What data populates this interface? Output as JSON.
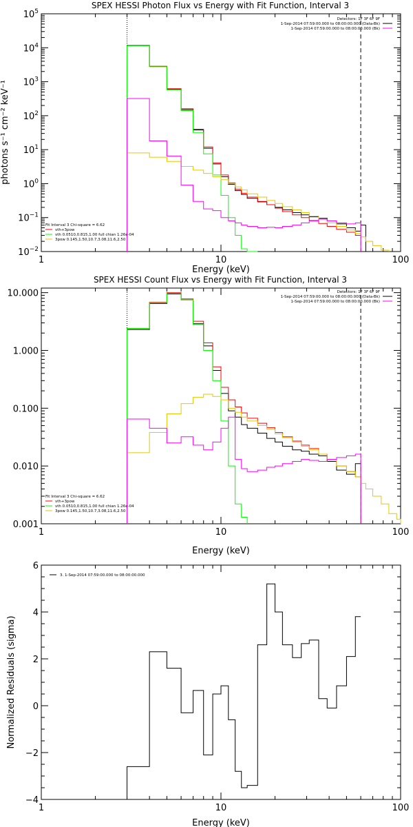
{
  "chart_data": [
    {
      "id": "photon",
      "type": "line",
      "title": "SPEX HESSI Photon Flux vs Energy with Fit Function, Interval 3",
      "xlabel": "Energy (keV)",
      "ylabel": "photons s⁻¹ cm⁻² keV⁻¹",
      "xscale": "log",
      "yscale": "log",
      "xlim": [
        1,
        100
      ],
      "ylim": [
        0.01,
        100000
      ],
      "x_ticks": [
        {
          "v": 1,
          "label": "1"
        },
        {
          "v": 10,
          "label": "10"
        },
        {
          "v": 100,
          "label": "100"
        }
      ],
      "y_ticks": [
        {
          "v": 0.01,
          "base": "10",
          "exp": "−2"
        },
        {
          "v": 0.1,
          "base": "10",
          "exp": "−1"
        },
        {
          "v": 1,
          "base": "10",
          "exp": "0"
        },
        {
          "v": 10,
          "base": "10",
          "exp": "1"
        },
        {
          "v": 100,
          "base": "10",
          "exp": "2"
        },
        {
          "v": 1000,
          "base": "10",
          "exp": "3"
        },
        {
          "v": 10000,
          "base": "10",
          "exp": "4"
        },
        {
          "v": 100000,
          "base": "10",
          "exp": "5"
        }
      ],
      "vlines": [
        {
          "x": 3,
          "style": "dotted"
        },
        {
          "x": 60,
          "style": "dashed"
        }
      ],
      "legend_top": {
        "detectors": "Detectors: 1F 3F 6F 9F",
        "entries": [
          {
            "label": "1-Sep-2014 07:59:00.000 to 08:00:00.000 (Data-Bk)",
            "color": "#000000"
          },
          {
            "label": "1-Sep-2014 07:59:00.000 to 08:00:00.000 (Bk)",
            "color": "#ff00ff"
          }
        ]
      },
      "fit_box": {
        "header": "Fit Interval 3   Chi-square = 6.62",
        "entries": [
          {
            "label": "vth+3pow",
            "color": "#ff0000"
          },
          {
            "label": "vth 0.0510,0.815,1.00  full chian 1.26e-04",
            "color": "#00ff00"
          },
          {
            "label": "3pow 0.145,1.50,10.7,3.08,11.6,2.50",
            "color": "#e6c700"
          }
        ]
      },
      "edges": [
        3,
        4,
        5,
        6,
        7,
        8,
        9,
        10,
        11,
        12,
        13,
        14,
        16,
        18,
        20,
        22,
        25,
        28,
        31,
        35,
        39,
        44,
        50,
        56,
        60,
        64,
        70,
        78,
        86
      ],
      "series": [
        {
          "name": "Data-Bk",
          "color": "#000000",
          "values": [
            11500,
            2800,
            600,
            150,
            38,
            11,
            3.8,
            1.6,
            0.95,
            0.62,
            0.48,
            0.37,
            0.29,
            0.24,
            0.2,
            0.17,
            0.14,
            0.12,
            0.105,
            0.095,
            0.08,
            0.065,
            0.05,
            0.04,
            0.06,
            null,
            null,
            null
          ]
        },
        {
          "name": "vth+3pow",
          "color": "#ff0000",
          "values": [
            11800,
            2850,
            620,
            160,
            40,
            12,
            4.1,
            1.8,
            1.05,
            0.68,
            0.52,
            0.4,
            0.3,
            0.24,
            0.19,
            0.15,
            0.12,
            0.1,
            0.082,
            0.067,
            0.055,
            0.045,
            0.037,
            0.03,
            null,
            null,
            null,
            null
          ]
        },
        {
          "name": "vth",
          "color": "#00ff00",
          "values": [
            11500,
            2750,
            580,
            140,
            32,
            7.5,
            1.8,
            0.45,
            0.1,
            0.03,
            0.012,
            0.005,
            null,
            null,
            null,
            null,
            null,
            null,
            null,
            null,
            null,
            null,
            null,
            null,
            null,
            null,
            null,
            null
          ]
        },
        {
          "name": "3pow",
          "color": "#e6c700",
          "values": [
            8,
            6,
            4.5,
            3.2,
            2.5,
            2,
            1.6,
            1.3,
            1,
            0.8,
            0.65,
            0.5,
            0.4,
            0.32,
            0.26,
            0.21,
            0.17,
            0.14,
            0.11,
            0.09,
            0.07,
            0.055,
            0.043,
            0.034,
            0.027,
            0.02,
            0.015,
            0.011
          ]
        },
        {
          "name": "Bk",
          "color": "#ff00ff",
          "values": [
            320,
            18,
            6.5,
            0.9,
            0.3,
            0.18,
            0.16,
            0.1,
            0.08,
            0.07,
            0.06,
            0.055,
            0.05,
            0.052,
            0.05,
            0.055,
            0.06,
            0.07,
            0.08,
            0.09,
            0.08,
            0.07,
            0.065,
            0.07,
            null,
            null,
            null,
            null
          ]
        }
      ]
    },
    {
      "id": "count",
      "type": "line",
      "title": "SPEX HESSI Count Flux vs Energy with Fit Function, Interval 3",
      "xlabel": "Energy (keV)",
      "ylabel": "",
      "xscale": "log",
      "yscale": "log",
      "xlim": [
        1,
        100
      ],
      "ylim": [
        0.001,
        12
      ],
      "x_ticks": [
        {
          "v": 1,
          "label": "1"
        },
        {
          "v": 10,
          "label": "10"
        },
        {
          "v": 100,
          "label": "100"
        }
      ],
      "y_ticks": [
        {
          "v": 0.001,
          "label": "0.001"
        },
        {
          "v": 0.01,
          "label": "0.010"
        },
        {
          "v": 0.1,
          "label": "0.100"
        },
        {
          "v": 1,
          "label": "1.000"
        },
        {
          "v": 10,
          "label": "10.000"
        }
      ],
      "vlines": [
        {
          "x": 3,
          "style": "dotted"
        },
        {
          "x": 60,
          "style": "dashed"
        }
      ],
      "legend_top": {
        "detectors": "Detectors: 1F 3F 6F 9F",
        "entries": [
          {
            "label": "1-Sep-2014 07:59:00.000 to 08:00:00.000 (Data-Bk)",
            "color": "#000000"
          },
          {
            "label": "1-Sep-2014 07:59:00.000 to 08:00:00.000 (Bk)",
            "color": "#ff00ff"
          }
        ]
      },
      "fit_box": {
        "header": "Fit Interval 3   Chi-square = 6.62",
        "entries": [
          {
            "label": "vth+3pow",
            "color": "#ff0000"
          },
          {
            "label": "vth 0.0510,0.815,1.00  full chian 1.26e-04",
            "color": "#00ff00"
          },
          {
            "label": "3pow 0.145,1.50,10.7,3.08,11.6,2.50",
            "color": "#e6c700"
          }
        ]
      },
      "edges": [
        3,
        4,
        5,
        6,
        7,
        8,
        9,
        10,
        11,
        12,
        13,
        14,
        16,
        18,
        20,
        22,
        25,
        28,
        31,
        35,
        39,
        44,
        50,
        56,
        60,
        64,
        70,
        78,
        86,
        95,
        100
      ],
      "series": [
        {
          "name": "Data-Bk",
          "color": "#000000",
          "values": [
            2.3,
            6.5,
            9.5,
            7.5,
            2.9,
            1.2,
            0.45,
            0.18,
            0.09,
            0.07,
            0.052,
            0.045,
            0.037,
            0.03,
            0.026,
            0.022,
            0.019,
            0.018,
            0.016,
            0.015,
            0.012,
            0.0085,
            0.0072,
            0.011,
            null,
            null,
            null,
            null,
            null,
            null
          ]
        },
        {
          "name": "vth+3pow",
          "color": "#ff0000",
          "values": [
            2.4,
            6.8,
            10,
            7.8,
            3.2,
            1.35,
            0.52,
            0.23,
            0.14,
            0.105,
            0.083,
            0.067,
            0.055,
            0.046,
            0.038,
            0.032,
            0.027,
            0.023,
            0.02,
            0.016,
            0.013,
            0.01,
            0.008,
            0.0065,
            null,
            null,
            null,
            null,
            null,
            null
          ]
        },
        {
          "name": "vth",
          "color": "#00ff00",
          "values": [
            2.4,
            6.7,
            9.8,
            7.5,
            2.8,
            1,
            0.3,
            0.06,
            0.01,
            0.0022,
            0.0013,
            null,
            null,
            null,
            null,
            null,
            null,
            null,
            null,
            null,
            null,
            null,
            null,
            null,
            null,
            null,
            null,
            null,
            null,
            null
          ]
        },
        {
          "name": "3pow",
          "color": "#e6c700",
          "values": [
            0.017,
            0.038,
            0.08,
            0.12,
            0.155,
            0.175,
            0.16,
            0.14,
            0.1,
            0.085,
            0.07,
            0.06,
            0.05,
            0.043,
            0.036,
            0.031,
            0.026,
            0.022,
            0.019,
            0.016,
            0.013,
            0.01,
            0.008,
            0.0065,
            0.005,
            0.004,
            0.003,
            0.0022,
            0.0015,
            0.0012
          ]
        },
        {
          "name": "Bk",
          "color": "#ff00ff",
          "values": [
            0.065,
            0.045,
            0.025,
            0.032,
            0.023,
            0.019,
            0.026,
            0.045,
            0.07,
            0.013,
            0.009,
            0.008,
            0.0085,
            0.0095,
            0.01,
            0.011,
            0.012,
            0.013,
            0.0125,
            0.012,
            0.013,
            0.014,
            0.015,
            0.016,
            null,
            null,
            null,
            null,
            null,
            null
          ]
        }
      ]
    },
    {
      "id": "residual",
      "type": "line",
      "title": "",
      "xlabel": "Energy (keV)",
      "ylabel": "Normalized Residuals (sigma)",
      "xscale": "log",
      "yscale": "linear",
      "xlim": [
        1,
        100
      ],
      "ylim": [
        -4,
        6
      ],
      "x_ticks": [
        {
          "v": 1,
          "label": "1"
        },
        {
          "v": 10,
          "label": "10"
        },
        {
          "v": 100,
          "label": "100"
        }
      ],
      "y_ticks": [
        {
          "v": -4,
          "label": "−4"
        },
        {
          "v": -2,
          "label": "−2"
        },
        {
          "v": 0,
          "label": "0"
        },
        {
          "v": 2,
          "label": "2"
        },
        {
          "v": 4,
          "label": "4"
        },
        {
          "v": 6,
          "label": "6"
        }
      ],
      "vlines": [],
      "legend_top": {
        "detectors": "",
        "entries": [
          {
            "label": "3.  1-Sep-2014 07:59:00.000 to 08:00:00.000",
            "color": "#000000"
          }
        ]
      },
      "fit_box": null,
      "edges": [
        3,
        4,
        5,
        6,
        7,
        8,
        9,
        10,
        11,
        12,
        13,
        14,
        16,
        18,
        20,
        22,
        25,
        28,
        31,
        35,
        39,
        44,
        50,
        56,
        60
      ],
      "series": [
        {
          "name": "residuals",
          "color": "#000000",
          "start_y": -4,
          "values": [
            -2.6,
            2.3,
            1.6,
            -0.3,
            0.65,
            -2.1,
            0.5,
            0.85,
            -0.6,
            -2.8,
            -3.5,
            -3.4,
            2.6,
            5.2,
            4.0,
            2.6,
            2.05,
            2.65,
            2.8,
            0.3,
            -0.1,
            0.85,
            2.1,
            3.8
          ]
        }
      ]
    }
  ]
}
